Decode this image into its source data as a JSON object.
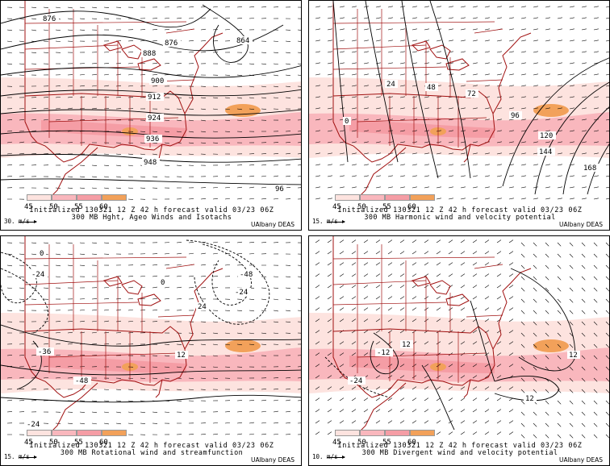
{
  "legend": {
    "labels": [
      "45",
      "50",
      "55",
      "60"
    ],
    "colors": [
      "#fde3df",
      "#f9b7bd",
      "#f59da5",
      "#f2a15a"
    ]
  },
  "colors": {
    "jet_light": "#fde3df",
    "jet_mid": "#f9b7bd",
    "jet_core": "#f59da5",
    "jet_max": "#f2a15a",
    "borders": "#a01010"
  },
  "panels": [
    {
      "init_line": "Initialized 130321 12 Z  42 h forecast valid 03/23 06Z",
      "title": "300 MB Hght, Ageo Winds and Isotachs",
      "scale": "30. m/s",
      "credit": "UAlbany DEAS",
      "contour_labels": [
        "876",
        "864",
        "876",
        "888",
        "900",
        "912",
        "924",
        "936",
        "948",
        "96"
      ]
    },
    {
      "init_line": "Initialized 130321 12 Z  42 h forecast valid 03/23 06Z",
      "title": "300 MB Harmonic wind and velocity potential",
      "scale": "15. m/s",
      "credit": "UAlbany DEAS",
      "contour_labels": [
        "0",
        "24",
        "48",
        "72",
        "96",
        "120",
        "144",
        "168"
      ]
    },
    {
      "init_line": "Initialized 130321 12 Z  42 h forecast valid 03/23 06Z",
      "title": "300 MB Rotational wind and streamfunction",
      "scale": "15. m/s",
      "credit": "UAlbany DEAS",
      "contour_labels": [
        "0",
        "-24",
        "-48",
        "-24",
        "0",
        "12",
        "24",
        "-36",
        "-48",
        "-24"
      ]
    },
    {
      "init_line": "Initialized 130321 12 Z  42 h forecast valid 03/23 06Z",
      "title": "300 MB Divergent wind and velocity potential",
      "scale": "10. m/s",
      "credit": "UAlbany DEAS",
      "contour_labels": [
        "-12",
        "12",
        "-24",
        "12",
        "12"
      ]
    }
  ]
}
